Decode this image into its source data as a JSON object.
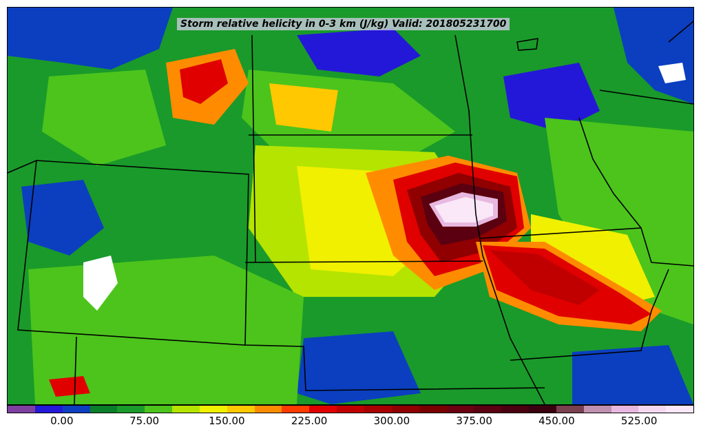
{
  "title": "Storm relative helicity in 0-3 km (J/kg) Valid: 201805231700",
  "colorbar": {
    "min": -50,
    "max": 575,
    "step": 25,
    "colors": [
      "#7f3fa0",
      "#2418d8",
      "#0b3fc0",
      "#0b7e2a",
      "#1a9a2a",
      "#4cc41c",
      "#b4e400",
      "#f0f000",
      "#ffc800",
      "#ff8c00",
      "#ff3c00",
      "#e00000",
      "#c00000",
      "#a80000",
      "#900000",
      "#7a0000",
      "#6a0010",
      "#5a0010",
      "#4a0010",
      "#3a0010",
      "#7a4050",
      "#c090b0",
      "#e8b8e0",
      "#f4d8f0",
      "#fae8f8"
    ],
    "tick_labels": [
      "0.00",
      "75.00",
      "150.00",
      "225.00",
      "300.00",
      "375.00",
      "450.00",
      "525.00"
    ],
    "tick_values": [
      0,
      75,
      150,
      225,
      300,
      375,
      450,
      525
    ]
  },
  "field_regions": [
    {
      "name": "central-max",
      "value": 450
    },
    {
      "name": "central-core",
      "value": 350
    },
    {
      "name": "central-red",
      "value": 225
    },
    {
      "name": "east-band",
      "value": 225
    },
    {
      "name": "northwest-red",
      "value": 200
    },
    {
      "name": "southwest-red",
      "value": 200
    },
    {
      "name": "west-white",
      "value": 525
    },
    {
      "name": "northeast-white",
      "value": 525
    }
  ]
}
